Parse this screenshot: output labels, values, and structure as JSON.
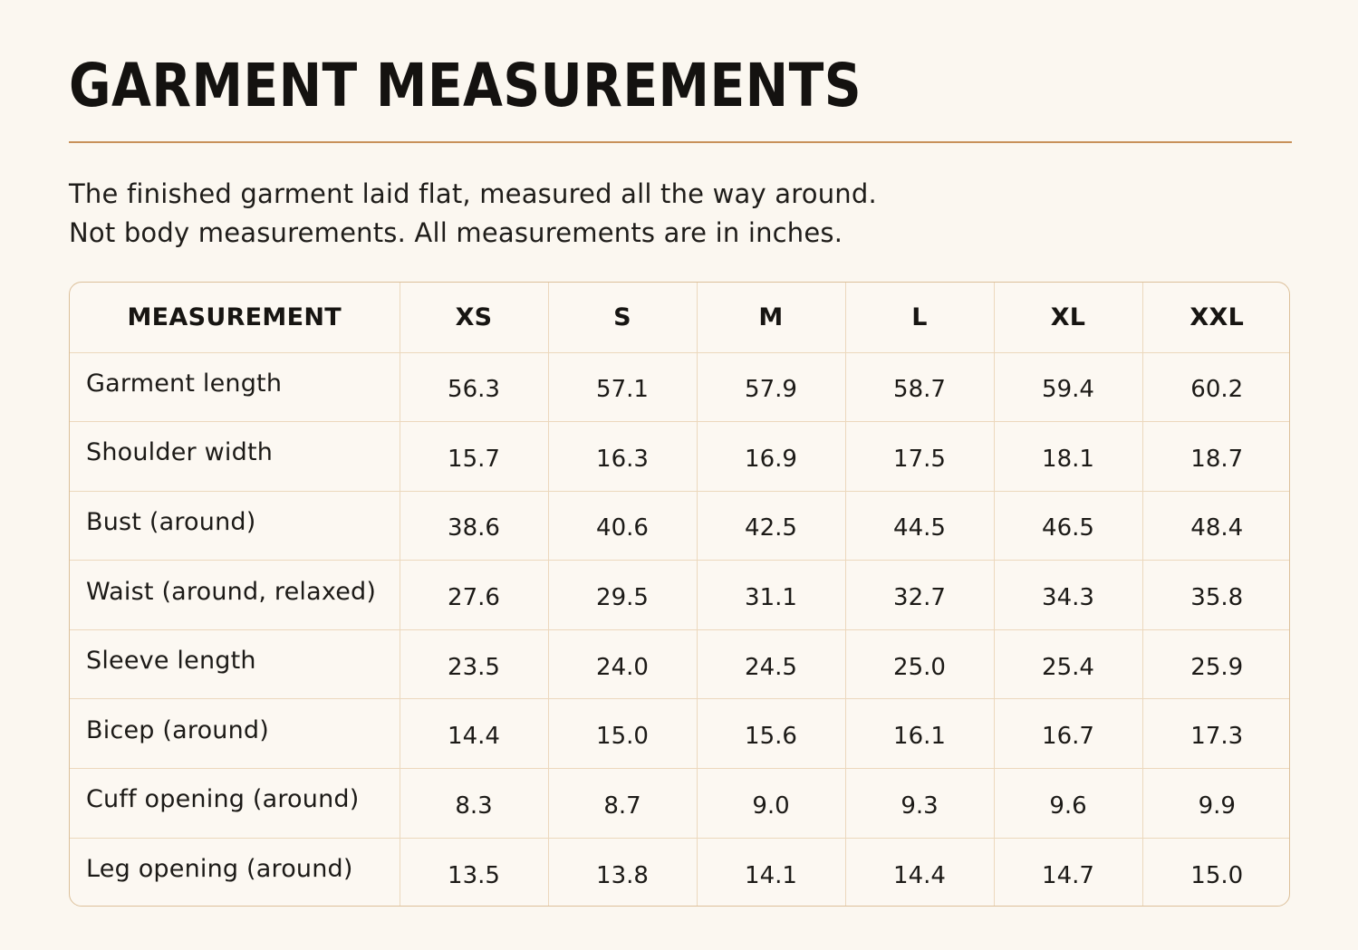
{
  "title": "GARMENT MEASUREMENTS",
  "intro": {
    "line1": "The finished garment laid flat, measured all the way around.",
    "line2": "Not body measurements. All measurements are in inches."
  },
  "table": {
    "headers": [
      "MEASUREMENT",
      "XS",
      "S",
      "M",
      "L",
      "XL",
      "XXL"
    ],
    "rows": [
      {
        "label": "Garment length",
        "values": [
          "56.3",
          "57.1",
          "57.9",
          "58.7",
          "59.4",
          "60.2"
        ]
      },
      {
        "label": "Shoulder width",
        "values": [
          "15.7",
          "16.3",
          "16.9",
          "17.5",
          "18.1",
          "18.7"
        ]
      },
      {
        "label": "Bust (around)",
        "values": [
          "38.6",
          "40.6",
          "42.5",
          "44.5",
          "46.5",
          "48.4"
        ]
      },
      {
        "label": "Waist (around, relaxed)",
        "values": [
          "27.6",
          "29.5",
          "31.1",
          "32.7",
          "34.3",
          "35.8"
        ]
      },
      {
        "label": "Sleeve length",
        "values": [
          "23.5",
          "24.0",
          "24.5",
          "25.0",
          "25.4",
          "25.9"
        ]
      },
      {
        "label": "Bicep (around)",
        "values": [
          "14.4",
          "15.0",
          "15.6",
          "16.1",
          "16.7",
          "17.3"
        ]
      },
      {
        "label": "Cuff opening (around)",
        "values": [
          "8.3",
          "8.7",
          "9.0",
          "9.3",
          "9.6",
          "9.9"
        ]
      },
      {
        "label": "Leg opening (around)",
        "values": [
          "13.5",
          "13.8",
          "14.1",
          "14.4",
          "14.7",
          "15.0"
        ]
      }
    ]
  },
  "colors": {
    "background": "#fbf7f0",
    "accent_rule": "#c8915a",
    "table_border": "#dcc09a",
    "grid_line": "#ecd8bd",
    "text": "#1c1a17"
  }
}
